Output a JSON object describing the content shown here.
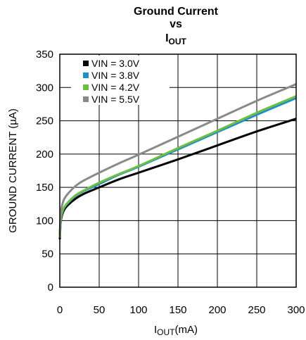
{
  "chart_data": {
    "type": "line",
    "title": [
      "Ground Current",
      "vs"
    ],
    "title_var": {
      "main": "I",
      "sub": "OUT"
    },
    "xlabel": {
      "main": "I",
      "sub": "OUT",
      "suffix": "(mA)"
    },
    "ylabel": "GROUND CURRENT (µA)",
    "xlim": [
      0,
      300
    ],
    "ylim": [
      0,
      350
    ],
    "xticks": [
      0,
      50,
      100,
      150,
      200,
      250,
      300
    ],
    "yticks": [
      0,
      50,
      100,
      150,
      200,
      250,
      300,
      350
    ],
    "grid": true,
    "legend_position": "top-left",
    "series": [
      {
        "name": "VIN = 3.0V",
        "color": "#000000",
        "x": [
          0,
          1,
          2,
          5,
          10,
          20,
          30,
          50,
          75,
          100,
          150,
          200,
          250,
          300
        ],
        "y": [
          72,
          95,
          104,
          115,
          123,
          133,
          140,
          150,
          162,
          172,
          192,
          213,
          234,
          253
        ]
      },
      {
        "name": "VIN = 3.8V",
        "color": "#1f8fc6",
        "x": [
          0,
          1,
          2,
          5,
          10,
          20,
          30,
          50,
          75,
          100,
          150,
          200,
          250,
          300
        ],
        "y": [
          74,
          98,
          107,
          118,
          126,
          137,
          144,
          155,
          169,
          181,
          207,
          233,
          259,
          284
        ]
      },
      {
        "name": "VIN = 4.2V",
        "color": "#6fbe44",
        "x": [
          0,
          1,
          2,
          5,
          10,
          20,
          30,
          50,
          75,
          100,
          150,
          200,
          250,
          300
        ],
        "y": [
          75,
          99,
          108,
          119,
          127,
          138,
          145,
          157,
          170,
          182,
          209,
          235,
          262,
          287
        ]
      },
      {
        "name": "VIN = 5.5V",
        "color": "#8a8a8a",
        "x": [
          0,
          1,
          2,
          5,
          10,
          20,
          30,
          50,
          75,
          100,
          150,
          200,
          250,
          300
        ],
        "y": [
          80,
          108,
          118,
          131,
          140,
          152,
          160,
          172,
          186,
          199,
          226,
          253,
          280,
          305
        ]
      }
    ]
  }
}
